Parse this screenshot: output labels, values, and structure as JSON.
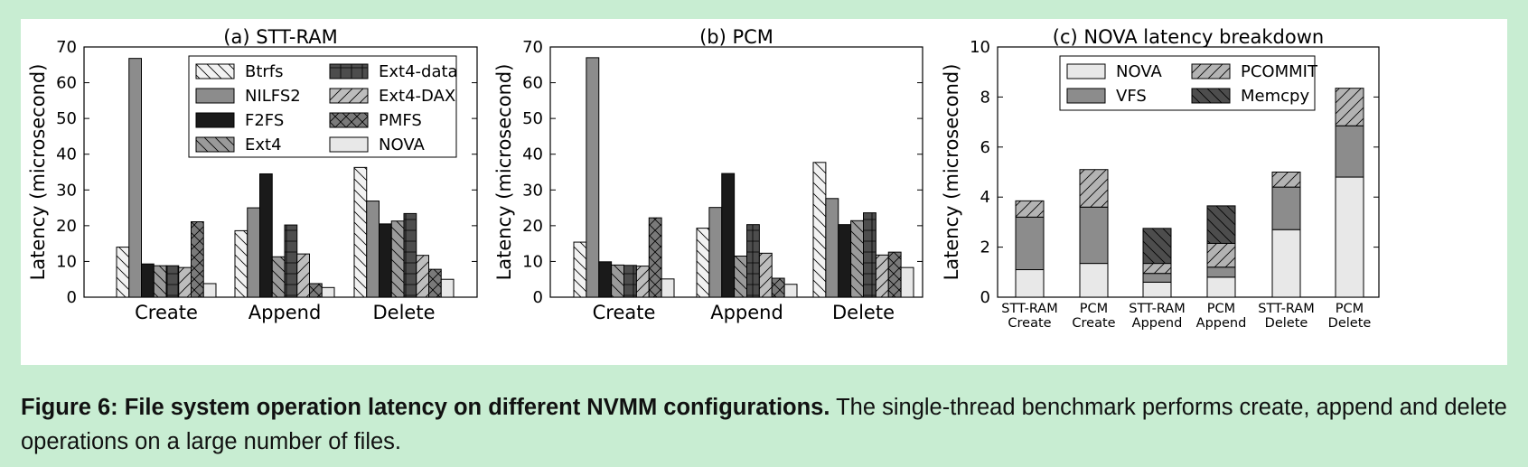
{
  "caption": {
    "label": "Figure 6: File system operation latency on different NVMM configurations.",
    "text": " The single-thread benchmark performs create, append and delete operations on a large number of files."
  },
  "colors": {
    "page_background": "#c8edd2",
    "panel_background": "#ffffff",
    "Btrfs": "#f2f2f2",
    "NILFS2": "#8c8c8c",
    "F2FS": "#1a1a1a",
    "Ext4": "#9a9a9a",
    "Ext4-data": "#4d4d4d",
    "Ext4-DAX": "#bdbdbd",
    "PMFS": "#7a7a7a",
    "NOVA": "#e8e8e8",
    "VFS": "#8c8c8c",
    "PCOMMIT": "#b3b3b3",
    "Memcpy": "#4d4d4d"
  },
  "chart_data": [
    {
      "type": "bar",
      "title": "(a) STT-RAM",
      "xlabel": "",
      "ylabel": "Latency (microsecond)",
      "ylim": [
        0,
        70
      ],
      "yticks": [
        0,
        10,
        20,
        30,
        40,
        50,
        60,
        70
      ],
      "grid": false,
      "legend_position": "top-right",
      "legend_columns": 2,
      "categories": [
        "Create",
        "Append",
        "Delete"
      ],
      "series": [
        {
          "name": "Btrfs",
          "hatch": "backslash",
          "values": [
            14.0,
            18.6,
            36.3
          ]
        },
        {
          "name": "NILFS2",
          "hatch": "none",
          "values": [
            66.8,
            25.0,
            26.9
          ]
        },
        {
          "name": "F2FS",
          "hatch": "none",
          "values": [
            9.3,
            34.5,
            20.5
          ]
        },
        {
          "name": "Ext4",
          "hatch": "backslash",
          "values": [
            8.8,
            11.3,
            21.3
          ]
        },
        {
          "name": "Ext4-data",
          "hatch": "grid",
          "values": [
            8.8,
            20.2,
            23.4
          ]
        },
        {
          "name": "Ext4-DAX",
          "hatch": "slash",
          "values": [
            8.3,
            12.1,
            11.7
          ]
        },
        {
          "name": "PMFS",
          "hatch": "cross",
          "values": [
            21.1,
            3.8,
            7.8
          ]
        },
        {
          "name": "NOVA",
          "hatch": "none",
          "values": [
            3.8,
            2.7,
            5.0
          ]
        }
      ]
    },
    {
      "type": "bar",
      "title": "(b) PCM",
      "xlabel": "",
      "ylabel": "Latency (microsecond)",
      "ylim": [
        0,
        70
      ],
      "yticks": [
        0,
        10,
        20,
        30,
        40,
        50,
        60,
        70
      ],
      "grid": false,
      "categories": [
        "Create",
        "Append",
        "Delete"
      ],
      "series": [
        {
          "name": "Btrfs",
          "hatch": "backslash",
          "values": [
            15.4,
            19.3,
            37.7
          ]
        },
        {
          "name": "NILFS2",
          "hatch": "none",
          "values": [
            67.0,
            25.1,
            27.6
          ]
        },
        {
          "name": "F2FS",
          "hatch": "none",
          "values": [
            9.9,
            34.6,
            20.3
          ]
        },
        {
          "name": "Ext4",
          "hatch": "backslash",
          "values": [
            9.0,
            11.5,
            21.4
          ]
        },
        {
          "name": "Ext4-data",
          "hatch": "grid",
          "values": [
            8.9,
            20.3,
            23.6
          ]
        },
        {
          "name": "Ext4-DAX",
          "hatch": "slash",
          "values": [
            8.7,
            12.3,
            11.8
          ]
        },
        {
          "name": "PMFS",
          "hatch": "cross",
          "values": [
            22.2,
            5.3,
            12.6
          ]
        },
        {
          "name": "NOVA",
          "hatch": "none",
          "values": [
            5.1,
            3.6,
            8.3
          ]
        }
      ]
    },
    {
      "type": "stacked-bar",
      "title": "(c) NOVA latency breakdown",
      "xlabel": "",
      "ylabel": "Latency (microsecond)",
      "ylim": [
        0,
        10
      ],
      "yticks": [
        0,
        2,
        4,
        6,
        8,
        10
      ],
      "grid": false,
      "legend_position": "top-left",
      "legend_columns": 2,
      "categories": [
        [
          "STT-RAM",
          "Create"
        ],
        [
          "PCM",
          "Create"
        ],
        [
          "STT-RAM",
          "Append"
        ],
        [
          "PCM",
          "Append"
        ],
        [
          "STT-RAM",
          "Delete"
        ],
        [
          "PCM",
          "Delete"
        ]
      ],
      "series": [
        {
          "name": "NOVA",
          "hatch": "none",
          "values": [
            1.1,
            1.35,
            0.6,
            0.8,
            2.7,
            4.8
          ]
        },
        {
          "name": "VFS",
          "hatch": "none",
          "values": [
            2.1,
            2.25,
            0.35,
            0.4,
            1.7,
            2.05
          ]
        },
        {
          "name": "PCOMMIT",
          "hatch": "slash",
          "values": [
            0.65,
            1.5,
            0.4,
            0.95,
            0.6,
            1.5
          ]
        },
        {
          "name": "Memcpy",
          "hatch": "backslash",
          "values": [
            0.0,
            0.0,
            1.4,
            1.5,
            0.0,
            0.0
          ]
        }
      ]
    }
  ]
}
